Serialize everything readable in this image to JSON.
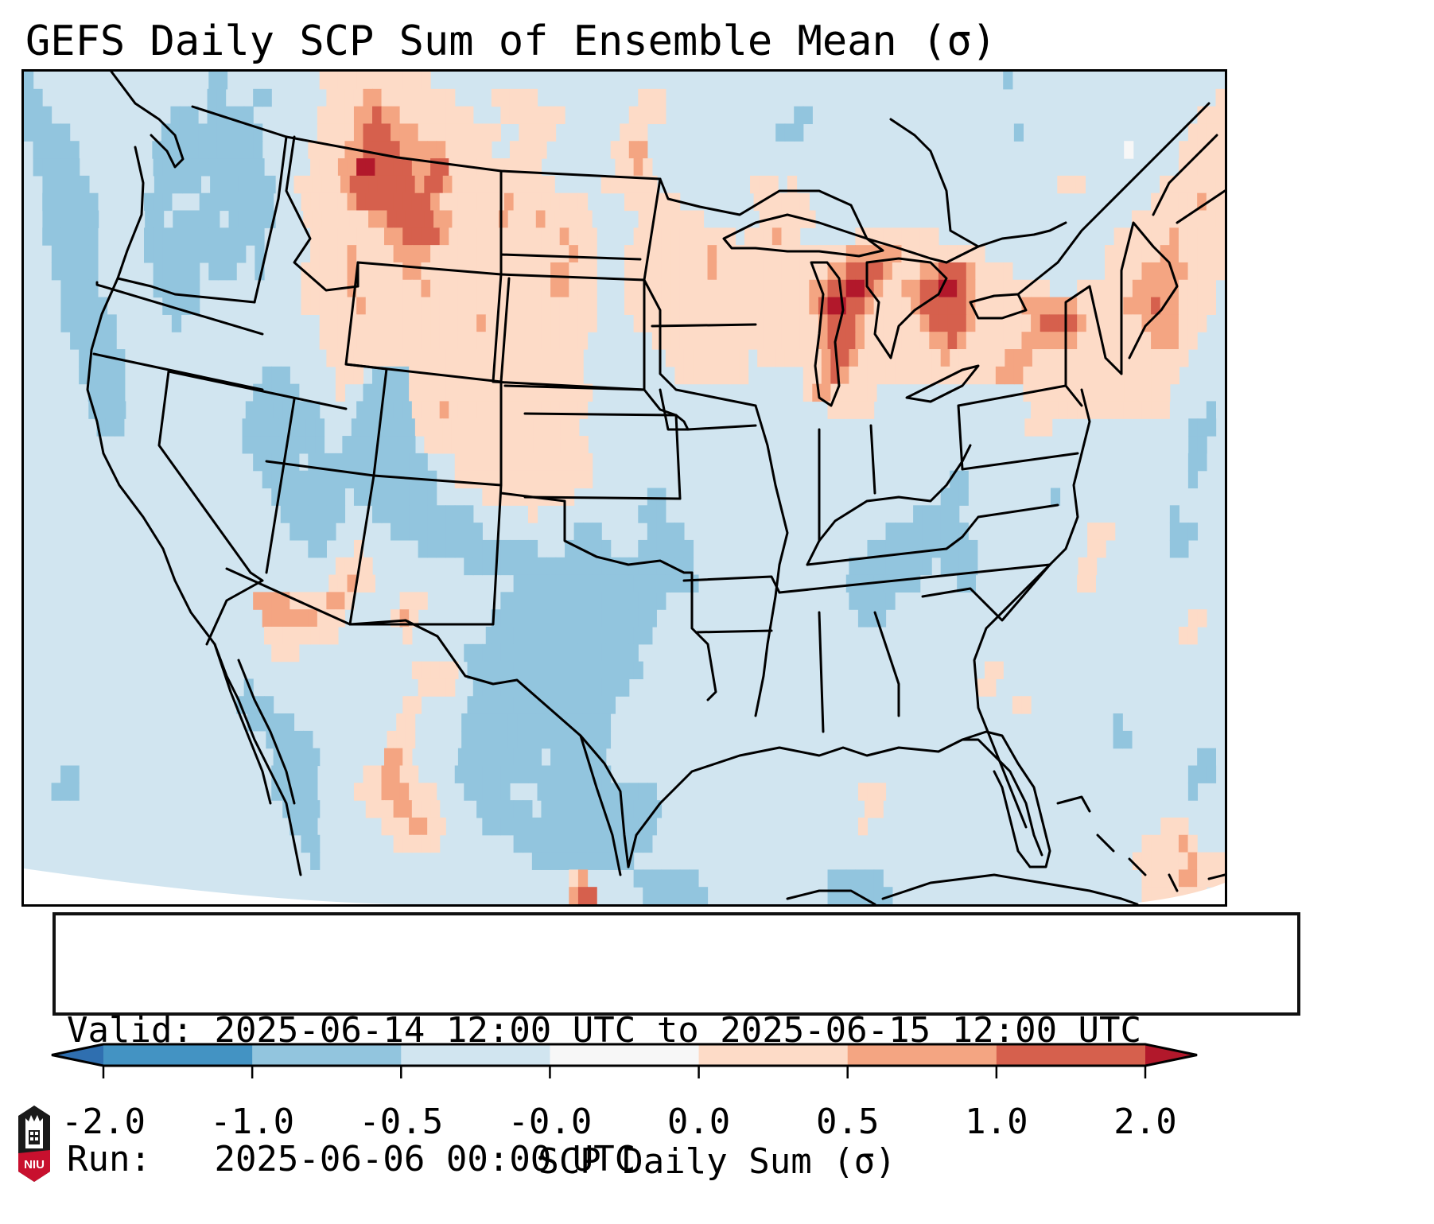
{
  "title": "GEFS Daily SCP Sum of Ensemble Mean (σ)",
  "info": {
    "valid_label": "Valid:",
    "valid_value": "2025-06-14 12:00 UTC to 2025-06-15 12:00 UTC",
    "run_label": "Run:",
    "run_value": "2025-06-06 00:00 UTC"
  },
  "logo": {
    "text": "NIU",
    "icon": "niu-logo-icon"
  },
  "colors": {
    "under": "#2f6fb0",
    "bins": [
      "#4393c3",
      "#92c5de",
      "#d1e5f0",
      "#f7f7f7",
      "#fddbc7",
      "#f4a582",
      "#d6604d"
    ],
    "over": "#b2182b",
    "outline": "#000000"
  },
  "chart_data": {
    "type": "heatmap",
    "title": "GEFS Daily SCP Sum of Ensemble Mean (σ)",
    "colorbar_label": "SCP Daily Sum (σ)",
    "colorbar_ticks": [
      "-2.0",
      "-1.0",
      "-0.5",
      "-0.0",
      "0.0",
      "0.5",
      "1.0",
      "2.0"
    ],
    "colorbar_levels": [
      -2.0,
      -1.0,
      -0.5,
      -0.0,
      0.0,
      0.5,
      1.0,
      2.0
    ],
    "extend": "both",
    "region": "Contiguous United States",
    "legend_codes": {
      "a": "< -2.0",
      "b": "-2.0 to -1.0",
      "c": "-1.0 to -0.5",
      "d": "-0.5 to -0.0",
      "e": "-0.0 to 0.0",
      "f": "0.0 to 0.5",
      "g": "0.5 to 1.0",
      "h": "1.0 to 2.0",
      "i": "> 2.0"
    },
    "grid_rows": [
      "cdddddddddddddddddddccddddddddddffffffffffffddddddddddddddddddddddddddddddddddddddddddddddddddddddddddddddcddddddddddddddddddddddd",
      "ccddddddddddddddddddccdddccddddddffffggffffffffddddfffffdddddddddddfffddddddddddddddddddddddddddddddddddddddddddddddddddddddddddddf",
      "cccdddddddddddddcccdcccccdddddddffffgghggffffffffdddfffffffdddddddffffddddddddddddddccddddddddddddddddddddddddddddddddddddddddddfff",
      "cccccddddddddddcccccccccccddddddffffghhhgggfffffffffddffffdddddddfffddddddddddddddcccdddddddddddddddddddddddcddddddddddddddddddffff",
      "dcccccddddddddccccccccccccdddddffffgghhhhgggggfffffddffffdddddddffggddddddddddddddddddddddddddddddddddddddddddddddddddddedddddfffff",
      "dcccccddddddddccccccccccccdddddfffggiihhhhgghhffffffffffddddddddffgfdddddddddddddddddddddddddddddddddddddddddddddddddddddddddfffff",
      "ddcccccdddddddcccccdcccccccddfffffghhhhhhhghhgfffffffffffdddddffffffddddddddddfffdfddddddddddddddddddddddddddddfffddddddddfffffff",
      "ddccccccdddddcccdddccccccccdddfffffghhhhhhhhgfffffffgffffffffddddffffffddddddddffffffdddddddddddddddddddddddddddddddddddddfffffgff",
      "ddccccccdddddccdcccccdcccccdddfffffffgghhhhhggfffffgfffgfffffdddddfffffffddddddffffffddddddddddddddddddddddddddddddddddffffffffff",
      "ddccccccdddddcccccccccccccdddddffffffffgghhhhgffffffffffffgfffddddfffffffffffdfffgffddddddfffffffffdddddddddddddddddddffffffgfffff",
      "dddcccccdddddcccccccccccdcdddddffffgffffggggfffffffffffffffgffdddfffffffffgffffffffffffffggggggfffffffffdddddddddddddffffffggfffff",
      "dddcccccddddddcccccdcccddcddddfffffgfffffggffffffffffffffggfffdddfffffffffgffffffffffffgghhhhgfffgghhhgffffddddddddddffffgggggffff",
      "ddddccccddddddcccccdddddddddddfffffgfffffffgfffffffffffffggfffdddffffffffffffffffffffgghhiihgffgghhiihgffffffffdddffffffgggggffffd",
      "ddddcccccddddddccccdddddddddddffffffgfffffffffffffffffffffffffdddffffffffffffffffffffghiihhgffffghhhhhgfffffggggggfffffggghggffffd",
      "ddddccccccddddddcdddddddddddddddfffffffffffffffffgffffffffffffddddffffffffffffffffffffghhhgffffffghhhhgffffffghhhhgffffffggggfffdd",
      "dddddcccccddddddddddddddddddddddfffffffffffffffffffffffffffffdddddddffffffffffffffffffghhhgfffffffgghgffffffggggggffffffffgggffddd",
      "ddddddcccccddddddddddddddddddddddffffffffffffffffffffffffffffdddddddddfffffffffdfffffffghhgfffffffffgffffffgggfffffffffffffffffdddd",
      "ddddddcccccdddddddddddddddcccdddddfffdccccfffffffffffffffffffddddddddddffffffffddddddffghgffffffffffffffffgggfffffffffffffffffddddd",
      "dddddddccccddddddddddddddcccccddddfddcccccffffffffffffffffffffdddddddddddddddddddddddfggfffffddddddddddddddddffffffffffffffffdddddd",
      "dddddddccccdddddddddddddccccccccddddccccccfffgfffffffffffffffddddddddddddddddddddddddddfffffdddddddddddddddddfffffffffffffffddddcd",
      "ddddddddcccdddddddddddddcccccccccdddcccccccffffffffffffffffffdddddddddddddddddddddddddddddddddddddddddddddddddfffdddddddddddddddcccd",
      "ddddddddddddddddddddddddcccccccccddccccccccdffffffffffffffffffddddddddddddddddddddddddddddddddddddddddddddddddddddddddddddddddddccdd",
      "dddddddddddddddddddddddddcccccdcccccccccccccdddfffffffffffffffdddddddddddddddddddddddddddddddddddddddddddddddddddddddddddddddddccdd",
      "ddddddddddddddddddddddddddcccccccccccccccccccddfffffffffffffffdddddddddddddddddddddddddddddddddddddddccddddddddddddddddddddddddcddd",
      "dddddddddddddddddddddddddddccccccccdcccccccccdddddffffffffffddddddddccddddddddddddddddddddddddddddddcccdddddddddcdddddddddddddddddd",
      "ddddddddddddddddddddddddddddcccccccdddcccccccccccddddddfdddddddddddcccdddddddddddddddddddddddddddcccccdddddddddddddddddddddddcddddd",
      "dddddddddddddddddddddddddddddcccccddddddccccccccccddddddddddcccdddddccccddddddddddddddddddddddcccccccccdddddddddddddfffddddddcccddd",
      "dddddddddddddddddddddddddddddddccdddfddddddcccccccccccccdddcccccdddccccccdddddddddddddddddddccccccccccccddddddddddddffdddddddccdddd",
      "ddddddddddddddddddddddddddddddddddffffddddddddddcccccccccccccccccccccccccdddddddddddddddddcccccccccdccccdddddddddddffdddddddddddddd",
      "dddddddddddddddddddddddddddddddddffgffdddddddddddddddccccccccccccccccccccddddddddddddddddccccccccddddccdddddddddddffdddddddddddddd",
      "dddddddddddddddddddddddddggggffffggfdddddfffddddddddccccccccccccccccccddddddddddddddddddddcccccdddddddddddddddddddddddddddddddddddd",
      "ddddddddddddddddddddddddddggggggfffdddddfgfddddddddccccccccccccccccccddddddddddddddddddddddcccdddddddddddddddddddddddddddddddddffdd",
      "ddddddddddddddddddddddddddffffffffdddddddfddddddddccccccccccccccccccdddddddddddddddddddddddddddddddddddddddddddddddddddddddddffddd",
      "dddddddddddddddddddddddddddfffddddddddddddddddddcccccccccccccccccccdddddddddddddddddddddddddddddddddddddddddddddddddddddddddddddddd",
      "ddddddddddddddddddddddddddddddddddddddddddfffffdcccccccccccccccccccdddddddddddddddddddddddddddddddddddddffdddddddddddddddddddddddd",
      "ddddddddddddddddddddddddcddddddddddddddddddffffddcccccccccccccccccddddddddddddddddddddddddddddddddddddddffddddddddddddddddddddddddd",
      "dddddddddddddddddddddddccccddddddddddddddffdddddccccccccccccccccdddddddddddddddddddddddddddddddddddddddddddffddddddddddddddddddddd",
      "ddddddddddddddddddddddddcccccdddddddddddffdddddccccccccccccccccddddddddddddddddddddddddddddddddddddddddddddddddddddddcddddddddddd",
      "ddddddddddddddddddddddddddcccccddddddddfffdddddccccccccccccccccddddddddddddddddddddddddddddddddddddddddddddddddddddddccdddddddddd",
      "dddddddddddddddddddddddddddcccccdddddddggfdddddcccccccccdccccccddddddddddddddddddddddddddddddddddddddddddddddddddddddddddddddddccd",
      "ddddccdddddddddddddddddddddcccccdddddffggffddddcccccccccccccccccdddddddddddddddddddddddddddddddddddddddddddddddddddddddddddddddcccd",
      "dddcccdddddddddddddddddddddcccccddddfffgggfffdddcccccdddcccccccccccccddddddddddddddddddddddfffdddddddddddddddddddddddddddddddddcddd",
      "ddddddddddddddddddddddddddddccccdddddfffggfffddddccccccdcccccccccccccddddddddddddddddddddddffddddddddddddddddddddddddddddddddddddd",
      "dddddddddddddddddddddddddddddcccdddddddfffggffddddcccccccccccccccccccddddddddddddddddddddddfddddddddddddddddddddddddddddddddfffdddd",
      "ddddddddddddddddddddddddddddddccddddddddfffffddddddddcccccccccccccccdddddddddddddddddddddddddddddddddddddddddddddddddddddffffgfddd",
      "dddddddddddddddddddddddddddddddcdddddddddddddddddddddddcccccccccccddddddddddddddddddddddddddddddddddddddddddddddddddddddffffffgfff",
      "dddddddddddddddddddddddddddddddddddddddddddddddddddddddddddfgdddddcccccccddddddddddddddccccccddddddddddddddddddddddddddddffffggfff",
      "dddddddddddddddddddddddddddddddddddddddddddddddddddddddddddghhdddddcccccccdddddddddddddcccccccdddddddddddddddddddddddddddfffffffdd"
    ]
  },
  "map_features": {
    "boundaries": "US state borders, Canadian provinces, Mexico, Great Lakes, Cuba, Bahamas coastlines"
  }
}
